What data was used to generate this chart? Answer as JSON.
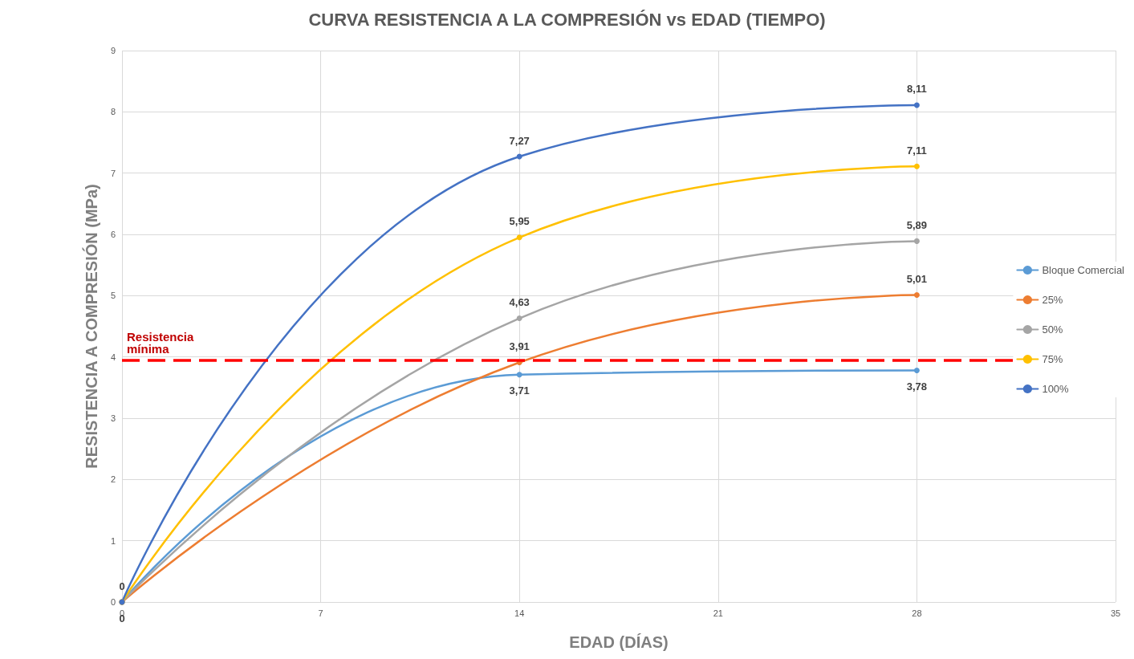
{
  "chart_data": {
    "type": "line",
    "title": "CURVA RESISTENCIA A LA COMPRESIÓN vs EDAD (TIEMPO)",
    "xlabel": "EDAD (DÍAS)",
    "ylabel": "RESISTENCIA A COMPRESIÓN (MPa)",
    "x": [
      0,
      14,
      28
    ],
    "series": [
      {
        "name": "Bloque Comercial",
        "color": "#5b9bd5",
        "values": [
          0,
          3.71,
          3.78
        ],
        "value_labels": [
          "0",
          "3,71",
          "3,78"
        ]
      },
      {
        "name": "25%",
        "color": "#ed7d31",
        "values": [
          0,
          3.91,
          5.01
        ],
        "value_labels": [
          null,
          "3,91",
          "5,01"
        ]
      },
      {
        "name": "50%",
        "color": "#a5a5a5",
        "values": [
          0,
          4.63,
          5.89
        ],
        "value_labels": [
          null,
          "4,63",
          "5,89"
        ]
      },
      {
        "name": "75%",
        "color": "#ffc000",
        "values": [
          0,
          5.95,
          7.11
        ],
        "value_labels": [
          null,
          "5,95",
          "7,11"
        ]
      },
      {
        "name": "100%",
        "color": "#4472c4",
        "values": [
          0,
          7.27,
          8.11
        ],
        "value_labels": [
          "0",
          "7,27",
          "8,11"
        ]
      }
    ],
    "xlim": [
      0,
      35
    ],
    "xticks": [
      0,
      7,
      14,
      21,
      28,
      35
    ],
    "ylim": [
      0,
      9
    ],
    "yticks": [
      0,
      1,
      2,
      3,
      4,
      5,
      6,
      7,
      8,
      9
    ],
    "ref_lines": [
      {
        "axis": "y",
        "value": 3.95,
        "label": "Resistencia mínima",
        "color": "#ff0000",
        "line_style": "dashed"
      }
    ],
    "grid": true,
    "legend": "right",
    "marker": "circle",
    "line_style": "solid"
  }
}
